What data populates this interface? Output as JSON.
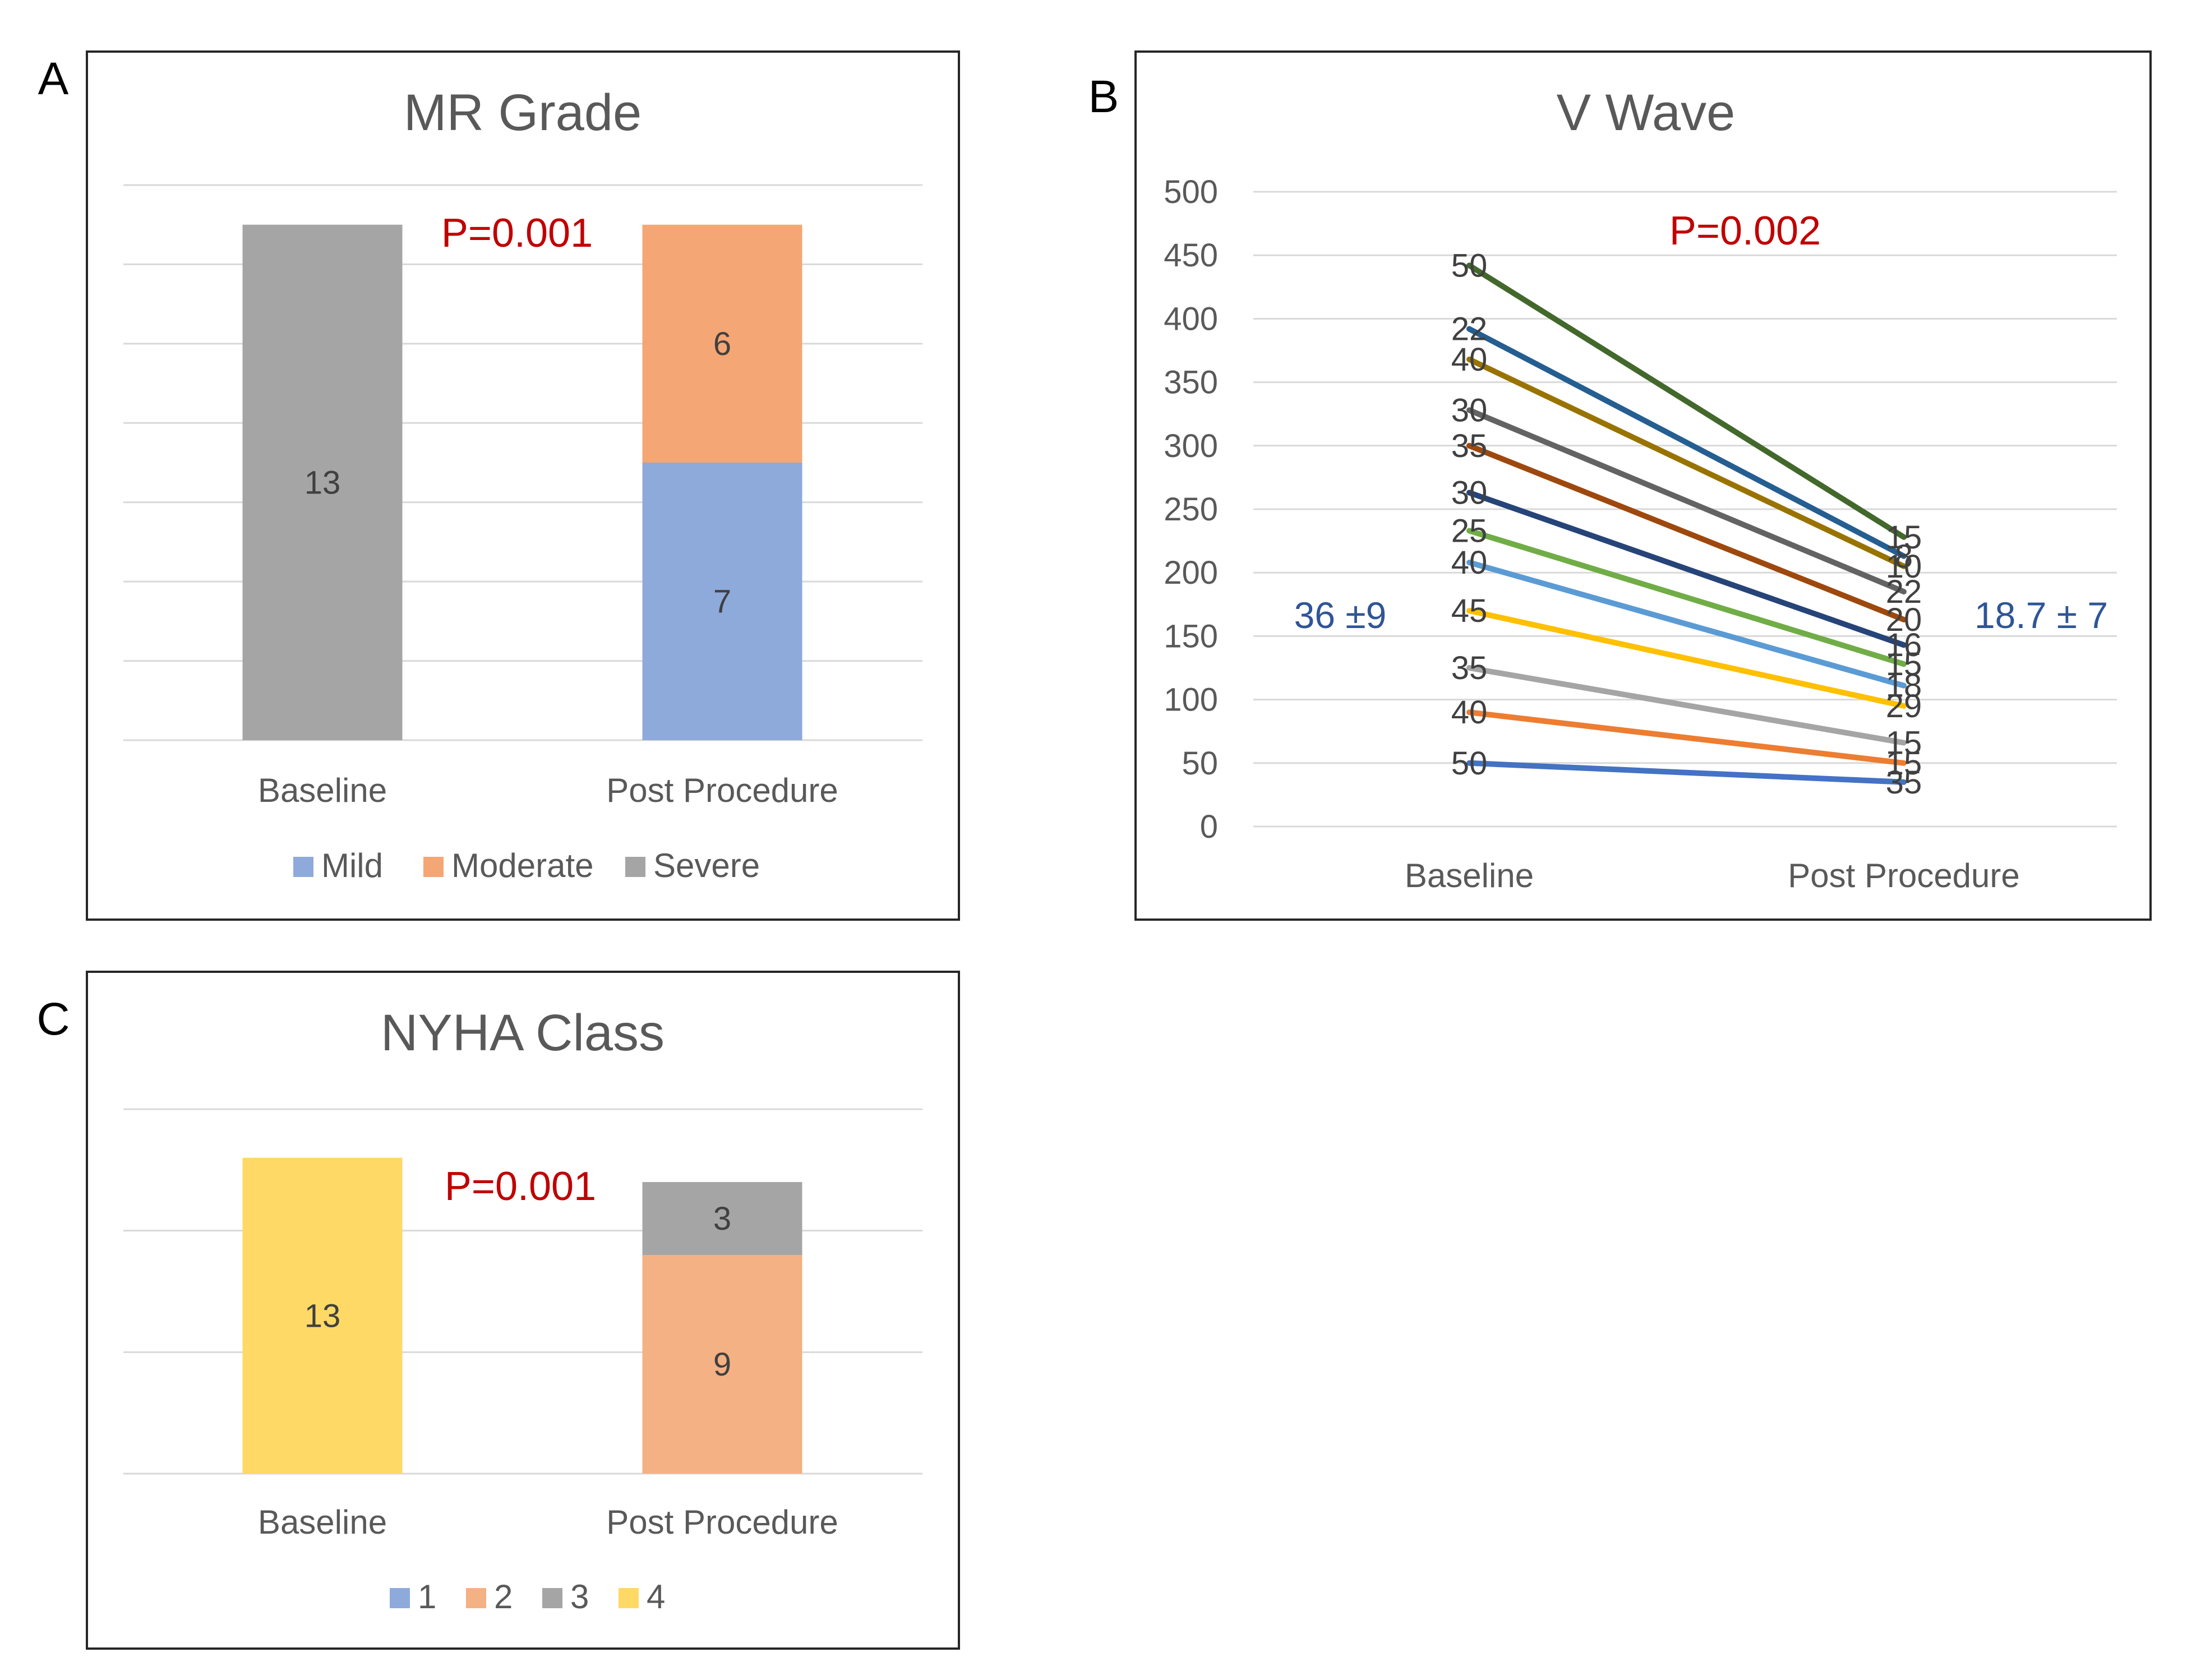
{
  "panel_letters": {
    "a": "A",
    "b": "B",
    "c": "C"
  },
  "chart_data": [
    {
      "type": "bar",
      "stacked": true,
      "title": "MR Grade",
      "categories": [
        "Baseline",
        "Post Procedure"
      ],
      "series": [
        {
          "name": "Mild",
          "color": "#8eaadb",
          "values": [
            0,
            7
          ]
        },
        {
          "name": "Moderate",
          "color": "#f4a674",
          "values": [
            0,
            6
          ]
        },
        {
          "name": "Severe",
          "color": "#a5a5a5",
          "values": [
            13,
            0
          ]
        }
      ],
      "data_labels": [
        {
          "category": "Baseline",
          "series": "Severe",
          "text": "13"
        },
        {
          "category": "Post Procedure",
          "series": "Mild",
          "text": "7"
        },
        {
          "category": "Post Procedure",
          "series": "Moderate",
          "text": "6"
        }
      ],
      "annotation": "P=0.001",
      "annotation_color": "#c00000",
      "legend_position": "bottom",
      "ylim": [
        0,
        14
      ],
      "grid_step": 2,
      "xlabel": "",
      "ylabel": ""
    },
    {
      "type": "line",
      "title": "V Wave",
      "categories": [
        "Baseline",
        "Post Procedure"
      ],
      "yticks": [
        "0",
        "50",
        "100",
        "150",
        "200",
        "250",
        "300",
        "350",
        "400",
        "450",
        "500"
      ],
      "ylim": [
        0,
        500
      ],
      "series": [
        {
          "color": "#4472c4",
          "values": [
            50,
            35
          ],
          "labels": [
            "50",
            "35"
          ]
        },
        {
          "color": "#ed7d31",
          "values": [
            90,
            50
          ],
          "labels": [
            "40",
            "15"
          ]
        },
        {
          "color": "#a5a5a5",
          "values": [
            125,
            66
          ],
          "labels": [
            "35",
            "15"
          ]
        },
        {
          "color": "#ffc000",
          "values": [
            170,
            95
          ],
          "labels": [
            "45",
            "29"
          ]
        },
        {
          "color": "#5b9bd5",
          "values": [
            208,
            111
          ],
          "labels": [
            "40",
            "18"
          ]
        },
        {
          "color": "#70ad47",
          "values": [
            233,
            128
          ],
          "labels": [
            "25",
            "15"
          ]
        },
        {
          "color": "#264478",
          "values": [
            263,
            143
          ],
          "labels": [
            "30",
            "16"
          ]
        },
        {
          "color": "#9e480e",
          "values": [
            300,
            163
          ],
          "labels": [
            "35",
            "20"
          ]
        },
        {
          "color": "#636363",
          "values": [
            328,
            185
          ],
          "labels": [
            "30",
            "22"
          ]
        },
        {
          "color": "#997300",
          "values": [
            368,
            205
          ],
          "labels": [
            "40",
            "10"
          ]
        },
        {
          "color": "#255e91",
          "values": [
            392,
            213
          ],
          "labels": [
            "22",
            "8"
          ]
        },
        {
          "color": "#43682b",
          "values": [
            442,
            228
          ],
          "labels": [
            "50",
            "15"
          ]
        }
      ],
      "annotation": "P=0.002",
      "annotation_color": "#c00000",
      "baseline_summary": "36 ±9",
      "post_summary": "18.7 ± 7",
      "summary_color": "#2f5597",
      "legend": "none",
      "xlabel": "",
      "ylabel": ""
    },
    {
      "type": "bar",
      "stacked": true,
      "title": "NYHA Class",
      "categories": [
        "Baseline",
        "Post Procedure"
      ],
      "series": [
        {
          "name": "1",
          "color": "#8eaadb",
          "values": [
            0,
            0
          ]
        },
        {
          "name": "2",
          "color": "#f4b183",
          "values": [
            0,
            9
          ]
        },
        {
          "name": "3",
          "color": "#a5a5a5",
          "values": [
            0,
            3
          ]
        },
        {
          "name": "4",
          "color": "#ffd966",
          "values": [
            13,
            0
          ]
        }
      ],
      "data_labels": [
        {
          "category": "Baseline",
          "series": "4",
          "text": "13"
        },
        {
          "category": "Post Procedure",
          "series": "2",
          "text": "9"
        },
        {
          "category": "Post Procedure",
          "series": "3",
          "text": "3"
        }
      ],
      "annotation": "P=0.001",
      "annotation_color": "#c00000",
      "legend_position": "bottom",
      "ylim": [
        0,
        15
      ],
      "grid_step": 5,
      "xlabel": "",
      "ylabel": ""
    }
  ]
}
